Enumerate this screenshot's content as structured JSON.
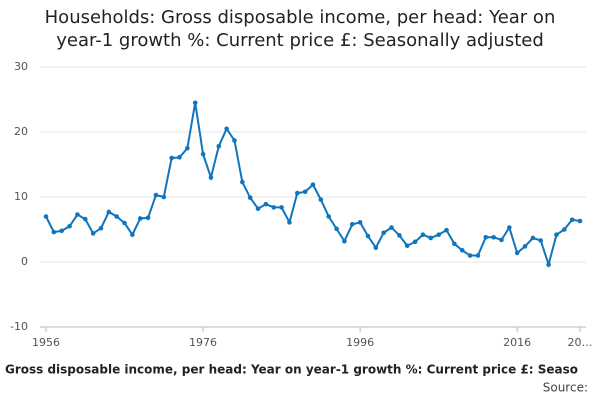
{
  "chart_data": {
    "type": "line",
    "title": "Households: Gross disposable income, per head: Year on year-1 growth %: Current price £: Seasonally adjusted",
    "footer": ": Gross disposable income, per head: Year on year-1 growth %: Current price £: Seaso",
    "source": "Source:",
    "x": [
      1956,
      1957,
      1958,
      1959,
      1960,
      1961,
      1962,
      1963,
      1964,
      1965,
      1966,
      1967,
      1968,
      1969,
      1970,
      1971,
      1972,
      1973,
      1974,
      1975,
      1976,
      1977,
      1978,
      1979,
      1980,
      1981,
      1982,
      1983,
      1984,
      1985,
      1986,
      1987,
      1988,
      1989,
      1990,
      1991,
      1992,
      1993,
      1994,
      1995,
      1996,
      1997,
      1998,
      1999,
      2000,
      2001,
      2002,
      2003,
      2004,
      2005,
      2006,
      2007,
      2008,
      2009,
      2010,
      2011,
      2012,
      2013,
      2014,
      2015,
      2016,
      2017,
      2018,
      2019,
      2020,
      2021,
      2022,
      2023,
      2024
    ],
    "series": [
      {
        "color": "#0f75bc",
        "values": [
          7.0,
          4.6,
          4.8,
          5.5,
          7.3,
          6.6,
          4.4,
          5.2,
          7.7,
          7.0,
          6.0,
          4.2,
          6.7,
          6.8,
          10.3,
          10.0,
          16.0,
          16.1,
          17.5,
          24.5,
          16.6,
          13.0,
          17.8,
          20.5,
          18.7,
          12.3,
          9.9,
          8.2,
          8.9,
          8.4,
          8.4,
          6.1,
          10.6,
          10.8,
          11.9,
          9.6,
          7.0,
          5.1,
          3.2,
          5.8,
          6.1,
          4.0,
          2.2,
          4.5,
          5.3,
          4.1,
          2.5,
          3.1,
          4.2,
          3.7,
          4.2,
          4.9,
          2.8,
          1.8,
          1.0,
          1.0,
          3.8,
          3.8,
          3.4,
          5.3,
          1.4,
          2.4,
          3.7,
          3.3,
          -0.4,
          4.2,
          5.0,
          6.5,
          6.3
        ]
      }
    ],
    "xlim": [
      1956,
      2024
    ],
    "xticks": [
      1956,
      1976,
      1996,
      2016,
      {
        "value": 2024,
        "label": "20…"
      }
    ],
    "ylim": [
      -10,
      30
    ],
    "yticks": [
      -10,
      0,
      10,
      20,
      30
    ],
    "grid": true
  }
}
